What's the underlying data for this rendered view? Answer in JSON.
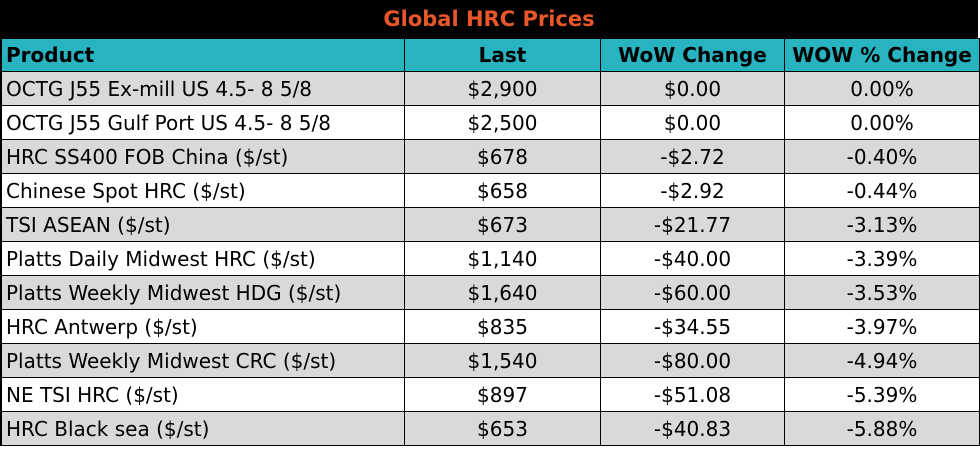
{
  "title": "Global HRC Prices",
  "headers": {
    "product": "Product",
    "last": "Last",
    "wow_change": "WoW Change",
    "wow_pct_change": "WOW % Change"
  },
  "rows": [
    {
      "product": "OCTG J55 Ex-mill US 4.5- 8 5/8",
      "last": "$2,900",
      "wow_change": "$0.00",
      "wow_pct": "0.00%"
    },
    {
      "product": "OCTG J55 Gulf Port US 4.5- 8 5/8",
      "last": "$2,500",
      "wow_change": "$0.00",
      "wow_pct": "0.00%"
    },
    {
      "product": "HRC SS400 FOB China ($/st)",
      "last": "$678",
      "wow_change": "-$2.72",
      "wow_pct": "-0.40%"
    },
    {
      "product": "Chinese Spot HRC ($/st)",
      "last": "$658",
      "wow_change": "-$2.92",
      "wow_pct": "-0.44%"
    },
    {
      "product": "TSI ASEAN ($/st)",
      "last": "$673",
      "wow_change": "-$21.77",
      "wow_pct": "-3.13%"
    },
    {
      "product": "Platts Daily Midwest HRC ($/st)",
      "last": "$1,140",
      "wow_change": "-$40.00",
      "wow_pct": "-3.39%"
    },
    {
      "product": "Platts Weekly Midwest HDG ($/st)",
      "last": "$1,640",
      "wow_change": "-$60.00",
      "wow_pct": "-3.53%"
    },
    {
      "product": "HRC Antwerp ($/st)",
      "last": "$835",
      "wow_change": "-$34.55",
      "wow_pct": "-3.97%"
    },
    {
      "product": "Platts Weekly Midwest CRC ($/st)",
      "last": "$1,540",
      "wow_change": "-$80.00",
      "wow_pct": "-4.94%"
    },
    {
      "product": "NE TSI HRC ($/st)",
      "last": "$897",
      "wow_change": "-$51.08",
      "wow_pct": "-5.39%"
    },
    {
      "product": "HRC Black sea ($/st)",
      "last": "$653",
      "wow_change": "-$40.83",
      "wow_pct": "-5.88%"
    }
  ],
  "colors": {
    "title_bg": "#000000",
    "title_text": "#e8572a",
    "header_bg": "#28b3c1",
    "row_shade": "#d9d9d9",
    "row_plain": "#ffffff"
  }
}
